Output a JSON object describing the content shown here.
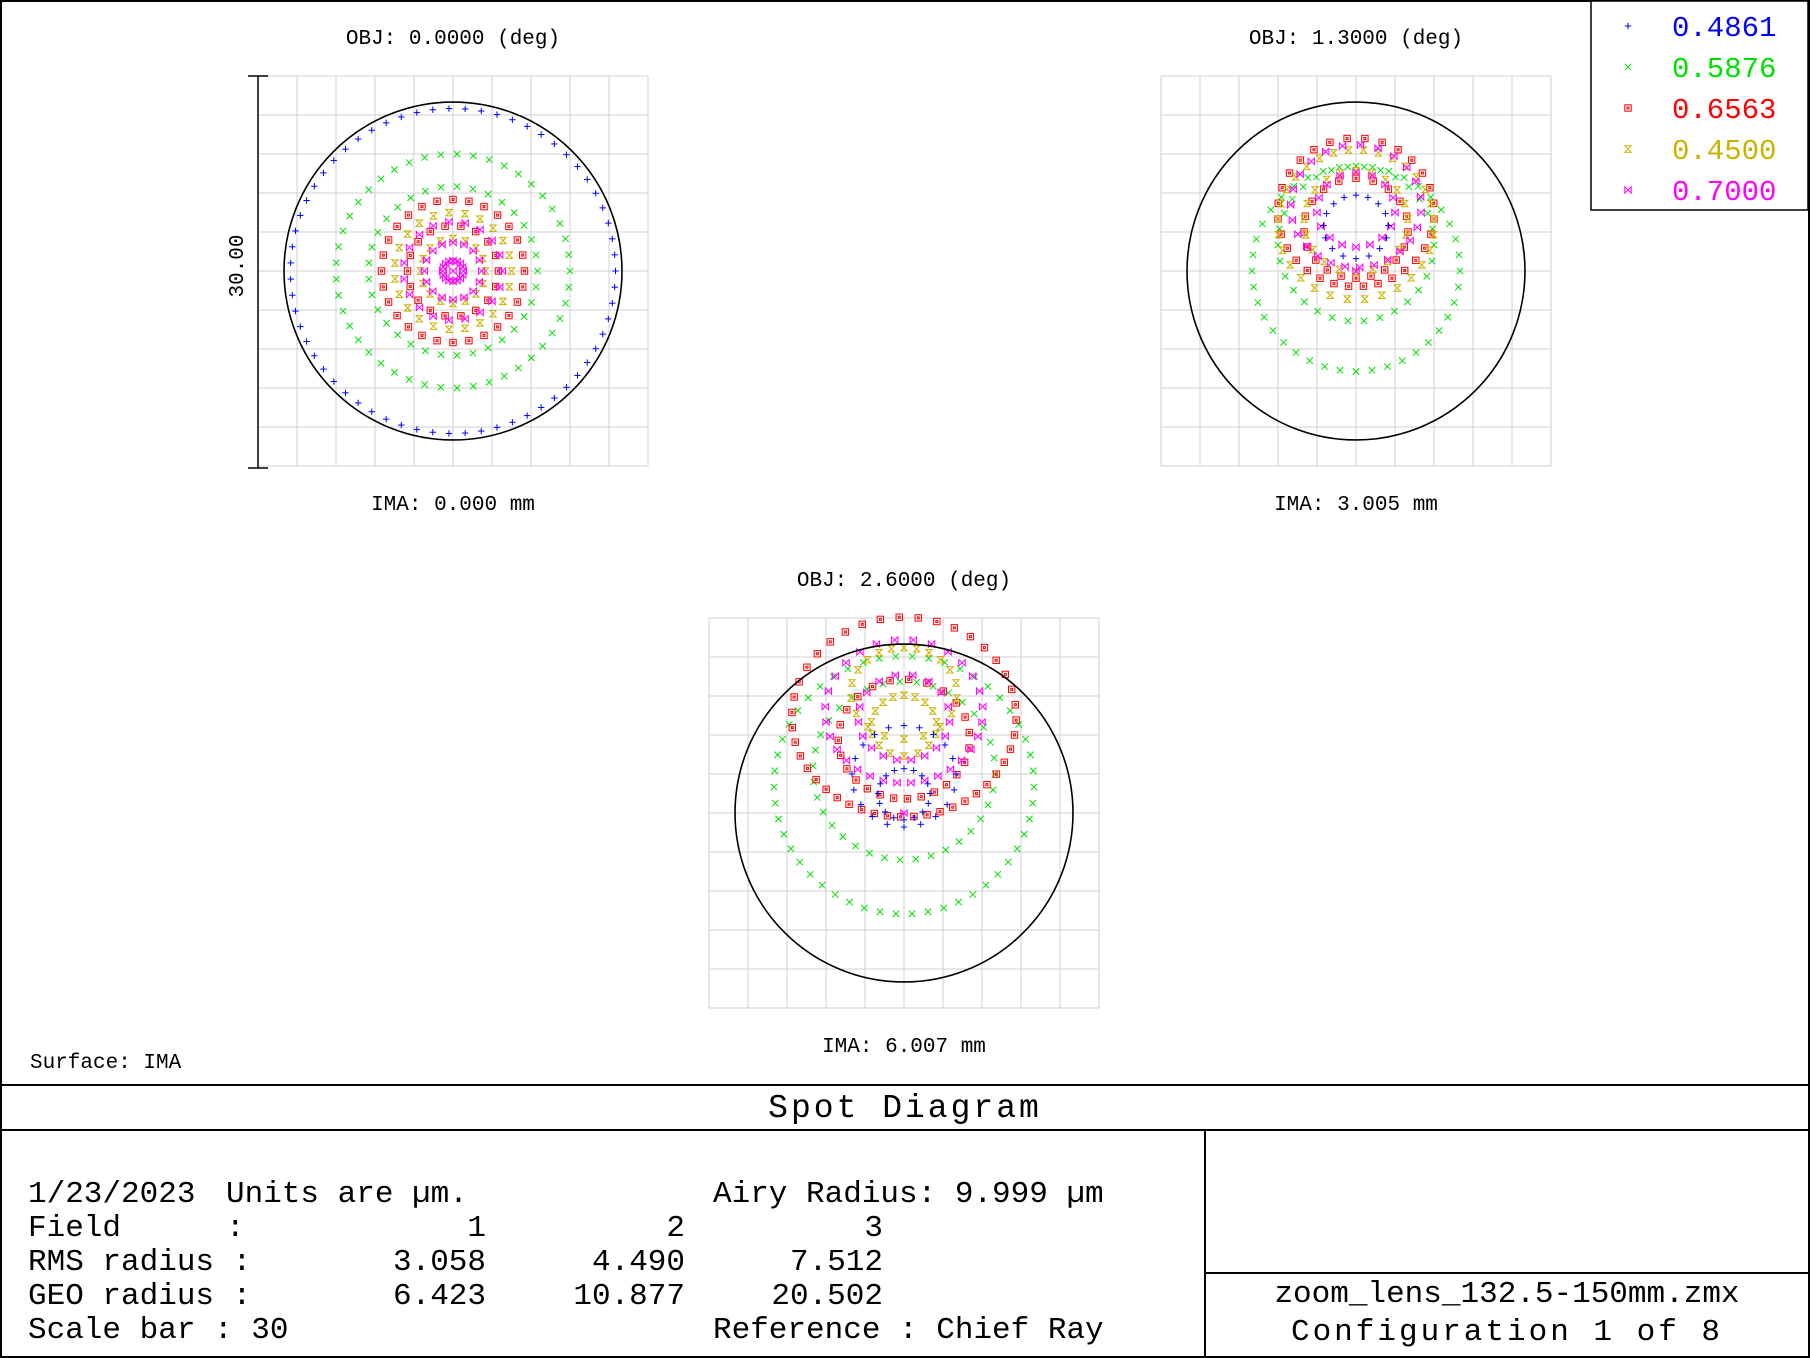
{
  "chart_data": {
    "type": "scatter",
    "title": "Spot Diagram",
    "surface_label": "Surface: IMA",
    "scale_bar_label": "30.00",
    "legend": [
      {
        "label": "0.4861",
        "marker": "plus",
        "color": "#0000ff"
      },
      {
        "label": "0.5876",
        "marker": "cross",
        "color": "#00e000"
      },
      {
        "label": "0.6563",
        "marker": "square",
        "color": "#ff0000"
      },
      {
        "label": "0.4500",
        "marker": "hourglass",
        "color": "#c8b400"
      },
      {
        "label": "0.7000",
        "marker": "bowtie",
        "color": "#ff00ff"
      }
    ],
    "fields": [
      {
        "obj_label": "OBJ: 0.0000 (deg)",
        "ima_label": "IMA: 0.000 mm",
        "rings": [
          {
            "w": 1,
            "cx": 0,
            "cy": 0,
            "r": 12.5,
            "dy": 0
          },
          {
            "w": 2,
            "cx": 0,
            "cy": 0,
            "r": 9,
            "dy": 0
          },
          {
            "w": 2,
            "cx": 0,
            "cy": 0,
            "r": 6.5,
            "dy": 0
          },
          {
            "w": 3,
            "cx": 0,
            "cy": 0,
            "r": 5.5,
            "dy": 0
          },
          {
            "w": 3,
            "cx": 0,
            "cy": 0,
            "r": 3.5,
            "dy": 0
          },
          {
            "w": 4,
            "cx": 0,
            "cy": 0,
            "r": 4.5,
            "dy": 0
          },
          {
            "w": 4,
            "cx": 0,
            "cy": 0,
            "r": 2.5,
            "dy": 0
          },
          {
            "w": 5,
            "cx": 0,
            "cy": 0,
            "r": 3.8,
            "dy": 0
          },
          {
            "w": 5,
            "cx": 0,
            "cy": 0,
            "r": 2.2,
            "dy": 0
          },
          {
            "w": 5,
            "cx": 0,
            "cy": 0,
            "r": 0.8,
            "dy": 0
          }
        ]
      },
      {
        "obj_label": "OBJ: 1.3000 (deg)",
        "ima_label": "IMA: 3.005 mm",
        "rings": [
          {
            "w": 2,
            "cx": 0,
            "cy": 0,
            "r": 8,
            "dy": 0.15
          },
          {
            "w": 2,
            "cx": 0,
            "cy": 2,
            "r": 6,
            "dy": 0.1
          },
          {
            "w": 3,
            "cx": 0,
            "cy": 4,
            "r": 6,
            "dy": 0.6
          },
          {
            "w": 3,
            "cx": 0,
            "cy": 3,
            "r": 4,
            "dy": 0.5
          },
          {
            "w": 4,
            "cx": 0,
            "cy": 4,
            "r": 6,
            "dy": -0.5
          },
          {
            "w": 4,
            "cx": 0,
            "cy": 4,
            "r": 4,
            "dy": -0.3
          },
          {
            "w": 5,
            "cx": 0,
            "cy": 4.5,
            "r": 5,
            "dy": 0.7
          },
          {
            "w": 5,
            "cx": 0,
            "cy": 4.5,
            "r": 3,
            "dy": 0.5
          },
          {
            "w": 1,
            "cx": 0,
            "cy": 3.5,
            "r": 2.5,
            "dy": -0.3
          }
        ]
      },
      {
        "obj_label": "OBJ: 2.6000 (deg)",
        "ima_label": "IMA: 6.007 mm",
        "rings": [
          {
            "w": 2,
            "cx": 0,
            "cy": 2,
            "r": 10,
            "dy": 0.1
          },
          {
            "w": 2,
            "cx": 0,
            "cy": 3,
            "r": 7,
            "dy": 0.25
          },
          {
            "w": 3,
            "cx": 0,
            "cy": 6,
            "r": 8.5,
            "dy": 1.2
          },
          {
            "w": 3,
            "cx": 0,
            "cy": 5,
            "r": 5,
            "dy": 1.0
          },
          {
            "w": 4,
            "cx": 0,
            "cy": 10,
            "r": 4,
            "dy": -1.5
          },
          {
            "w": 4,
            "cx": 0,
            "cy": 7,
            "r": 2.5,
            "dy": -0.8
          },
          {
            "w": 5,
            "cx": 0,
            "cy": 7,
            "r": 6,
            "dy": 1.0
          },
          {
            "w": 5,
            "cx": 0,
            "cy": 7,
            "r": 3.5,
            "dy": 0.7
          },
          {
            "w": 1,
            "cx": 0,
            "cy": 3,
            "r": 4,
            "dy": -0.3
          },
          {
            "w": 1,
            "cx": 0,
            "cy": 1.5,
            "r": 2,
            "dy": -0.2
          }
        ]
      }
    ],
    "airy_radius_um": 9.999,
    "rms_radius": [
      3.058,
      4.49,
      7.512
    ],
    "geo_radius": [
      6.423,
      10.877,
      20.502
    ],
    "scale_bar": 30,
    "reference": "Chief Ray"
  },
  "info": {
    "line1_date": "1/23/2023",
    "line1_units": "Units are µm.",
    "line1_airy": "Airy Radius: 9.999 µm",
    "field_label": "Field",
    "field_colon": ":",
    "field_values": [
      "1",
      "2",
      "3"
    ],
    "rms_label": "RMS radius :",
    "rms_values": [
      "3.058",
      "4.490",
      "7.512"
    ],
    "geo_label": "GEO radius :",
    "geo_values": [
      "6.423",
      "10.877",
      "20.502"
    ],
    "scale_label": "Scale bar  : 30",
    "reference_label": "Reference  : Chief Ray"
  },
  "file": {
    "name": "zoom_lens_132.5-150mm.zmx",
    "config": "Configuration 1 of 8"
  }
}
